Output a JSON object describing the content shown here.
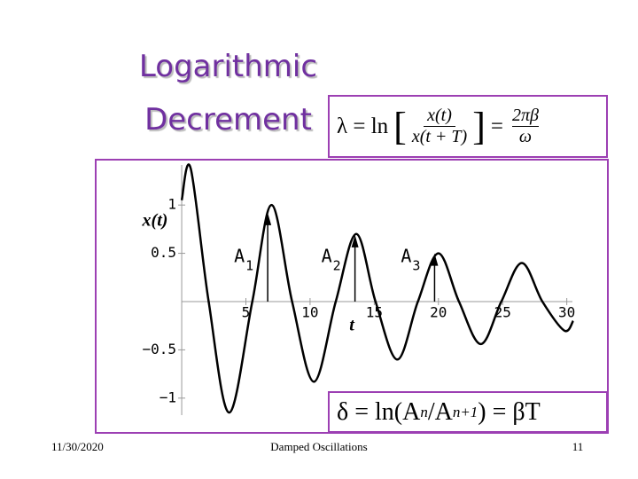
{
  "slide": {
    "title_line1": "Logarithmic",
    "title_line2": "Decrement",
    "lambda_formula": {
      "lhs": "λ = ln",
      "num": "x(t)",
      "den": "x(t + T)",
      "eq": "=",
      "rhs_num": "2πβ",
      "rhs_den": "ω"
    },
    "delta_formula": {
      "text": "δ = ln(A",
      "sub1": "n",
      "mid": "/A",
      "sub2": "n+1",
      "rhs": ") = βT"
    },
    "footer": {
      "date": "11/30/2020",
      "center": "Damped Oscillations",
      "page": "11"
    }
  },
  "chart_data": {
    "type": "line",
    "y_label": "x(t)",
    "x_label": "t",
    "x": [
      0,
      0.7,
      2.1,
      3.7,
      5.5,
      7.0,
      8.6,
      10.3,
      12.0,
      13.6,
      15.1,
      16.8,
      18.4,
      20.0,
      21.6,
      23.3,
      24.9,
      26.5,
      28.1,
      29.8,
      30.5
    ],
    "series": [
      {
        "color": "#000000",
        "values": [
          1.05,
          1.38,
          0,
          -1.15,
          0,
          1.0,
          0,
          -0.83,
          0,
          0.7,
          0,
          -0.6,
          0,
          0.5,
          0,
          -0.44,
          0,
          0.4,
          0,
          -0.3,
          -0.2
        ]
      }
    ],
    "annotations": [
      {
        "label": "A",
        "sub": "1",
        "x": 6.7,
        "y": 0.92
      },
      {
        "label": "A",
        "sub": "2",
        "x": 13.5,
        "y": 0.69
      },
      {
        "label": "A",
        "sub": "3",
        "x": 19.7,
        "y": 0.5
      }
    ],
    "xlim": [
      -6.7,
      33.2
    ],
    "ylim": [
      -1.36,
      1.47
    ],
    "xticks": [
      5,
      10,
      15,
      20,
      25,
      30
    ],
    "yticks": [
      {
        "value": -1,
        "label": "−1"
      },
      {
        "value": -0.5,
        "label": "−0.5"
      },
      0.5,
      1
    ]
  }
}
